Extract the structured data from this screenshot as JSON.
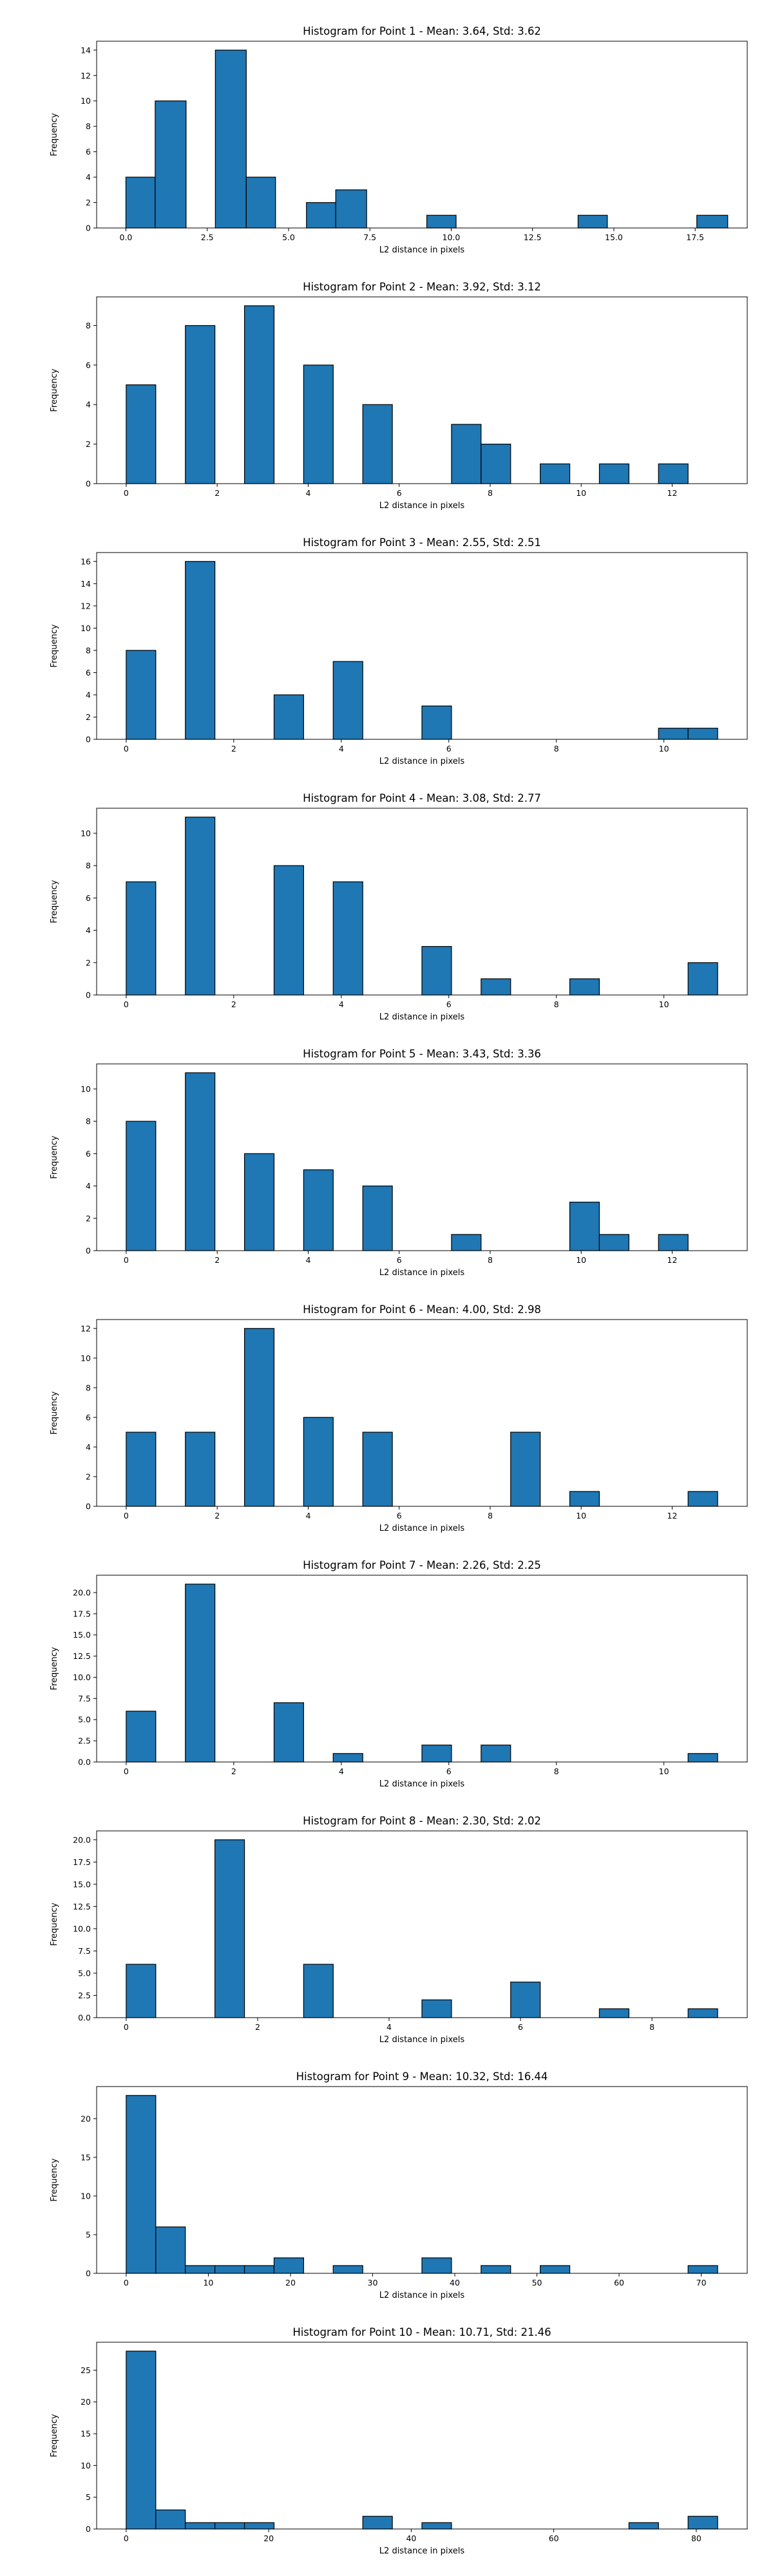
{
  "chart_data": [
    {
      "type": "bar",
      "title": "Histogram for Point 1 - Mean: 3.64, Std: 3.62",
      "xlabel": "L2 distance in pixels",
      "ylabel": "Frequency",
      "xlim": [
        -0.9,
        19.1
      ],
      "ylim": [
        0,
        14.7
      ],
      "xticks": [
        0.0,
        2.5,
        5.0,
        7.5,
        10.0,
        12.5,
        15.0,
        17.5
      ],
      "xtick_labels": [
        "0.0",
        "2.5",
        "5.0",
        "7.5",
        "10.0",
        "12.5",
        "15.0",
        "17.5"
      ],
      "yticks": [
        0,
        2,
        4,
        6,
        8,
        10,
        12,
        14
      ],
      "ytick_labels": [
        "0",
        "2",
        "4",
        "6",
        "8",
        "10",
        "12",
        "14"
      ],
      "bins": [
        {
          "x0": 0.0,
          "x1": 0.9,
          "count": 4
        },
        {
          "x0": 0.9,
          "x1": 1.85,
          "count": 10
        },
        {
          "x0": 1.85,
          "x1": 2.75,
          "count": 0
        },
        {
          "x0": 2.75,
          "x1": 3.7,
          "count": 14
        },
        {
          "x0": 3.7,
          "x1": 4.6,
          "count": 4
        },
        {
          "x0": 5.55,
          "x1": 6.45,
          "count": 2
        },
        {
          "x0": 6.45,
          "x1": 7.4,
          "count": 3
        },
        {
          "x0": 9.25,
          "x1": 10.15,
          "count": 1
        },
        {
          "x0": 13.9,
          "x1": 14.8,
          "count": 1
        },
        {
          "x0": 17.55,
          "x1": 18.5,
          "count": 1
        }
      ]
    },
    {
      "type": "bar",
      "title": "Histogram for Point 2 - Mean: 3.92, Std: 3.12",
      "xlabel": "L2 distance in pixels",
      "ylabel": "Frequency",
      "xlim": [
        -0.65,
        13.65
      ],
      "ylim": [
        0,
        9.45
      ],
      "xticks": [
        0,
        2,
        4,
        6,
        8,
        10,
        12
      ],
      "xtick_labels": [
        "0",
        "2",
        "4",
        "6",
        "8",
        "10",
        "12"
      ],
      "yticks": [
        0,
        2,
        4,
        6,
        8
      ],
      "ytick_labels": [
        "0",
        "2",
        "4",
        "6",
        "8"
      ],
      "bins": [
        {
          "x0": 0.0,
          "x1": 0.65,
          "count": 5
        },
        {
          "x0": 1.3,
          "x1": 1.95,
          "count": 8
        },
        {
          "x0": 2.6,
          "x1": 3.25,
          "count": 9
        },
        {
          "x0": 3.9,
          "x1": 4.55,
          "count": 6
        },
        {
          "x0": 5.2,
          "x1": 5.85,
          "count": 4
        },
        {
          "x0": 7.15,
          "x1": 7.8,
          "count": 3
        },
        {
          "x0": 7.8,
          "x1": 8.45,
          "count": 2
        },
        {
          "x0": 9.1,
          "x1": 9.75,
          "count": 1
        },
        {
          "x0": 10.4,
          "x1": 11.05,
          "count": 1
        },
        {
          "x0": 11.7,
          "x1": 12.35,
          "count": 1
        }
      ]
    },
    {
      "type": "bar",
      "title": "Histogram for Point 3 - Mean: 2.55, Std: 2.51",
      "xlabel": "L2 distance in pixels",
      "ylabel": "Frequency",
      "xlim": [
        -0.55,
        11.55
      ],
      "ylim": [
        0,
        16.8
      ],
      "xticks": [
        0,
        2,
        4,
        6,
        8,
        10
      ],
      "xtick_labels": [
        "0",
        "2",
        "4",
        "6",
        "8",
        "10"
      ],
      "yticks": [
        0,
        2,
        4,
        6,
        8,
        10,
        12,
        14,
        16
      ],
      "ytick_labels": [
        "0",
        "2",
        "4",
        "6",
        "8",
        "10",
        "12",
        "14",
        "16"
      ],
      "bins": [
        {
          "x0": 0.0,
          "x1": 0.55,
          "count": 8
        },
        {
          "x0": 1.1,
          "x1": 1.65,
          "count": 16
        },
        {
          "x0": 2.75,
          "x1": 3.3,
          "count": 4
        },
        {
          "x0": 3.85,
          "x1": 4.4,
          "count": 7
        },
        {
          "x0": 5.5,
          "x1": 6.05,
          "count": 3
        },
        {
          "x0": 9.9,
          "x1": 10.45,
          "count": 1
        },
        {
          "x0": 10.45,
          "x1": 11.0,
          "count": 1
        }
      ]
    },
    {
      "type": "bar",
      "title": "Histogram for Point 4 - Mean: 3.08, Std: 2.77",
      "xlabel": "L2 distance in pixels",
      "ylabel": "Frequency",
      "xlim": [
        -0.55,
        11.55
      ],
      "ylim": [
        0,
        11.55
      ],
      "xticks": [
        0,
        2,
        4,
        6,
        8,
        10
      ],
      "xtick_labels": [
        "0",
        "2",
        "4",
        "6",
        "8",
        "10"
      ],
      "yticks": [
        0,
        2,
        4,
        6,
        8,
        10
      ],
      "ytick_labels": [
        "0",
        "2",
        "4",
        "6",
        "8",
        "10"
      ],
      "bins": [
        {
          "x0": 0.0,
          "x1": 0.55,
          "count": 7
        },
        {
          "x0": 1.1,
          "x1": 1.65,
          "count": 11
        },
        {
          "x0": 2.75,
          "x1": 3.3,
          "count": 8
        },
        {
          "x0": 3.85,
          "x1": 4.4,
          "count": 7
        },
        {
          "x0": 5.5,
          "x1": 6.05,
          "count": 3
        },
        {
          "x0": 6.6,
          "x1": 7.15,
          "count": 1
        },
        {
          "x0": 8.25,
          "x1": 8.8,
          "count": 1
        },
        {
          "x0": 10.45,
          "x1": 11.0,
          "count": 2
        }
      ]
    },
    {
      "type": "bar",
      "title": "Histogram for Point 5 - Mean: 3.43, Std: 3.36",
      "xlabel": "L2 distance in pixels",
      "ylabel": "Frequency",
      "xlim": [
        -0.65,
        13.65
      ],
      "ylim": [
        0,
        11.55
      ],
      "xticks": [
        0,
        2,
        4,
        6,
        8,
        10,
        12
      ],
      "xtick_labels": [
        "0",
        "2",
        "4",
        "6",
        "8",
        "10",
        "12"
      ],
      "yticks": [
        0,
        2,
        4,
        6,
        8,
        10
      ],
      "ytick_labels": [
        "0",
        "2",
        "4",
        "6",
        "8",
        "10"
      ],
      "bins": [
        {
          "x0": 0.0,
          "x1": 0.65,
          "count": 8
        },
        {
          "x0": 1.3,
          "x1": 1.95,
          "count": 11
        },
        {
          "x0": 2.6,
          "x1": 3.25,
          "count": 6
        },
        {
          "x0": 3.9,
          "x1": 4.55,
          "count": 5
        },
        {
          "x0": 5.2,
          "x1": 5.85,
          "count": 4
        },
        {
          "x0": 7.15,
          "x1": 7.8,
          "count": 1
        },
        {
          "x0": 9.75,
          "x1": 10.4,
          "count": 3
        },
        {
          "x0": 10.4,
          "x1": 11.05,
          "count": 1
        },
        {
          "x0": 11.7,
          "x1": 12.35,
          "count": 1
        }
      ]
    },
    {
      "type": "bar",
      "title": "Histogram for Point 6 - Mean: 4.00, Std: 2.98",
      "xlabel": "L2 distance in pixels",
      "ylabel": "Frequency",
      "xlim": [
        -0.65,
        13.65
      ],
      "ylim": [
        0,
        12.6
      ],
      "xticks": [
        0,
        2,
        4,
        6,
        8,
        10,
        12
      ],
      "xtick_labels": [
        "0",
        "2",
        "4",
        "6",
        "8",
        "10",
        "12"
      ],
      "yticks": [
        0,
        2,
        4,
        6,
        8,
        10,
        12
      ],
      "ytick_labels": [
        "0",
        "2",
        "4",
        "6",
        "8",
        "10",
        "12"
      ],
      "bins": [
        {
          "x0": 0.0,
          "x1": 0.65,
          "count": 5
        },
        {
          "x0": 1.3,
          "x1": 1.95,
          "count": 5
        },
        {
          "x0": 2.6,
          "x1": 3.25,
          "count": 12
        },
        {
          "x0": 3.9,
          "x1": 4.55,
          "count": 6
        },
        {
          "x0": 5.2,
          "x1": 5.85,
          "count": 5
        },
        {
          "x0": 8.45,
          "x1": 9.1,
          "count": 5
        },
        {
          "x0": 9.75,
          "x1": 10.4,
          "count": 1
        },
        {
          "x0": 12.35,
          "x1": 13.0,
          "count": 1
        }
      ]
    },
    {
      "type": "bar",
      "title": "Histogram for Point 7 - Mean: 2.26, Std: 2.25",
      "xlabel": "L2 distance in pixels",
      "ylabel": "Frequency",
      "xlim": [
        -0.55,
        11.55
      ],
      "ylim": [
        0,
        22.05
      ],
      "xticks": [
        0,
        2,
        4,
        6,
        8,
        10
      ],
      "xtick_labels": [
        "0",
        "2",
        "4",
        "6",
        "8",
        "10"
      ],
      "yticks": [
        0.0,
        2.5,
        5.0,
        7.5,
        10.0,
        12.5,
        15.0,
        17.5,
        20.0
      ],
      "ytick_labels": [
        "0.0",
        "2.5",
        "5.0",
        "7.5",
        "10.0",
        "12.5",
        "15.0",
        "17.5",
        "20.0"
      ],
      "bins": [
        {
          "x0": 0.0,
          "x1": 0.55,
          "count": 6
        },
        {
          "x0": 1.1,
          "x1": 1.65,
          "count": 21
        },
        {
          "x0": 2.75,
          "x1": 3.3,
          "count": 7
        },
        {
          "x0": 3.85,
          "x1": 4.4,
          "count": 1
        },
        {
          "x0": 5.5,
          "x1": 6.05,
          "count": 2
        },
        {
          "x0": 6.6,
          "x1": 7.15,
          "count": 2
        },
        {
          "x0": 10.45,
          "x1": 11.0,
          "count": 1
        }
      ]
    },
    {
      "type": "bar",
      "title": "Histogram for Point 8 - Mean: 2.30, Std: 2.02",
      "xlabel": "L2 distance in pixels",
      "ylabel": "Frequency",
      "xlim": [
        -0.45,
        9.45
      ],
      "ylim": [
        0,
        21.0
      ],
      "xticks": [
        0,
        2,
        4,
        6,
        8
      ],
      "xtick_labels": [
        "0",
        "2",
        "4",
        "6",
        "8"
      ],
      "yticks": [
        0.0,
        2.5,
        5.0,
        7.5,
        10.0,
        12.5,
        15.0,
        17.5,
        20.0
      ],
      "ytick_labels": [
        "0.0",
        "2.5",
        "5.0",
        "7.5",
        "10.0",
        "12.5",
        "15.0",
        "17.5",
        "20.0"
      ],
      "bins": [
        {
          "x0": 0.0,
          "x1": 0.45,
          "count": 6
        },
        {
          "x0": 1.35,
          "x1": 1.8,
          "count": 20
        },
        {
          "x0": 2.7,
          "x1": 3.15,
          "count": 6
        },
        {
          "x0": 4.5,
          "x1": 4.95,
          "count": 2
        },
        {
          "x0": 5.85,
          "x1": 6.3,
          "count": 4
        },
        {
          "x0": 7.2,
          "x1": 7.65,
          "count": 1
        },
        {
          "x0": 8.55,
          "x1": 9.0,
          "count": 1
        }
      ]
    },
    {
      "type": "bar",
      "title": "Histogram for Point 9 - Mean: 10.32, Std: 16.44",
      "xlabel": "L2 distance in pixels",
      "ylabel": "Frequency",
      "xlim": [
        -3.6,
        75.6
      ],
      "ylim": [
        0,
        24.15
      ],
      "xticks": [
        0,
        10,
        20,
        30,
        40,
        50,
        60,
        70
      ],
      "xtick_labels": [
        "0",
        "10",
        "20",
        "30",
        "40",
        "50",
        "60",
        "70"
      ],
      "yticks": [
        0,
        5,
        10,
        15,
        20
      ],
      "ytick_labels": [
        "0",
        "5",
        "10",
        "15",
        "20"
      ],
      "bins": [
        {
          "x0": 0.0,
          "x1": 3.6,
          "count": 23
        },
        {
          "x0": 3.6,
          "x1": 7.2,
          "count": 6
        },
        {
          "x0": 7.2,
          "x1": 10.8,
          "count": 1
        },
        {
          "x0": 10.8,
          "x1": 14.4,
          "count": 1
        },
        {
          "x0": 14.4,
          "x1": 18.0,
          "count": 1
        },
        {
          "x0": 18.0,
          "x1": 21.6,
          "count": 2
        },
        {
          "x0": 25.2,
          "x1": 28.8,
          "count": 1
        },
        {
          "x0": 36.0,
          "x1": 39.6,
          "count": 2
        },
        {
          "x0": 43.2,
          "x1": 46.8,
          "count": 1
        },
        {
          "x0": 50.4,
          "x1": 54.0,
          "count": 1
        },
        {
          "x0": 68.4,
          "x1": 72.0,
          "count": 1
        }
      ]
    },
    {
      "type": "bar",
      "title": "Histogram for Point 10 - Mean: 10.71, Std: 21.46",
      "xlabel": "L2 distance in pixels",
      "ylabel": "Frequency",
      "xlim": [
        -4.15,
        87.15
      ],
      "ylim": [
        0,
        29.4
      ],
      "xticks": [
        0,
        20,
        40,
        60,
        80
      ],
      "xtick_labels": [
        "0",
        "20",
        "40",
        "60",
        "80"
      ],
      "yticks": [
        0,
        5,
        10,
        15,
        20,
        25
      ],
      "ytick_labels": [
        "0",
        "5",
        "10",
        "15",
        "20",
        "25"
      ],
      "bins": [
        {
          "x0": 0.0,
          "x1": 4.15,
          "count": 28
        },
        {
          "x0": 4.15,
          "x1": 8.3,
          "count": 3
        },
        {
          "x0": 8.3,
          "x1": 12.45,
          "count": 1
        },
        {
          "x0": 12.45,
          "x1": 16.6,
          "count": 1
        },
        {
          "x0": 16.6,
          "x1": 20.75,
          "count": 1
        },
        {
          "x0": 33.2,
          "x1": 37.35,
          "count": 2
        },
        {
          "x0": 41.5,
          "x1": 45.65,
          "count": 1
        },
        {
          "x0": 70.55,
          "x1": 74.7,
          "count": 1
        },
        {
          "x0": 78.85,
          "x1": 83.0,
          "count": 2
        }
      ]
    }
  ]
}
